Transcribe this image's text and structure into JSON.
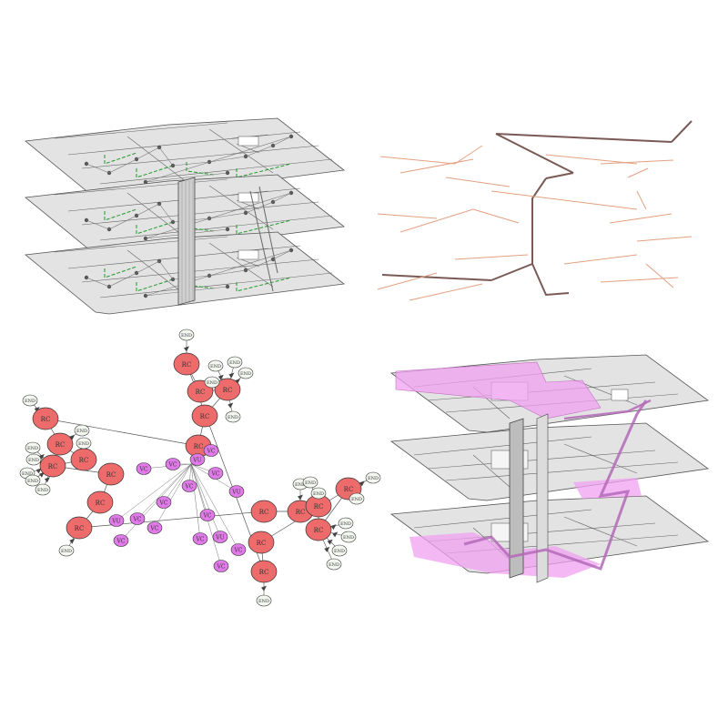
{
  "colors": {
    "floor_fill": "#e3e3e3",
    "floor_stroke": "#555555",
    "wall": "#666666",
    "door_green": "#1f9a2a",
    "node_gray": "#555555",
    "edge_brown": "#7a5a55",
    "edge_salmon": "#e4a081",
    "node_red": "#ee6b6b",
    "node_purple": "#e07ae8",
    "node_end": "#f4f7f0",
    "highlight_pink": "#f0a0f0",
    "path_purple": "#b46ab8"
  },
  "graph": {
    "red_label": "RC",
    "purple_label": "VC",
    "purple_alt_label": "VU",
    "end_label": "END"
  }
}
